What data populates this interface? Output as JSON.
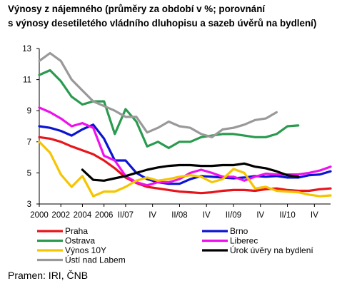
{
  "chart_data": {
    "type": "line",
    "title_lines": [
      "Výnosy z nájemného (průměry za období v %; porovnání",
      "s výnosy desetiletého vládního dluhopisu a sazeb úvěrů na bydlení)"
    ],
    "source": "Pramen: IRI, ČNB",
    "ylim": [
      3,
      13
    ],
    "yticks": [
      "3",
      "5",
      "7",
      "9",
      "11",
      "13"
    ],
    "x_periods": 28,
    "xticks": [
      {
        "index": 0,
        "label": "2000"
      },
      {
        "index": 2,
        "label": "2002"
      },
      {
        "index": 4,
        "label": "2004"
      },
      {
        "index": 6,
        "label": "2006"
      },
      {
        "index": 8,
        "label": "II/07"
      },
      {
        "index": 10.5,
        "label": "IV"
      },
      {
        "index": 13,
        "label": "II/08"
      },
      {
        "index": 15.5,
        "label": "IV"
      },
      {
        "index": 18,
        "label": "II/09"
      },
      {
        "index": 20.5,
        "label": "IV"
      },
      {
        "index": 23,
        "label": "II/10"
      },
      {
        "index": 25.5,
        "label": "IV"
      }
    ],
    "series": [
      {
        "name": "Praha",
        "color": "#e8141b",
        "values": [
          7.3,
          7.2,
          7.0,
          6.7,
          6.45,
          6.2,
          5.8,
          5.3,
          4.7,
          4.35,
          4.1,
          4.0,
          3.9,
          3.8,
          3.75,
          3.7,
          3.75,
          3.85,
          3.9,
          3.9,
          3.85,
          3.95,
          4.0,
          3.9,
          3.85,
          3.85,
          3.95,
          4.0
        ]
      },
      {
        "name": "Brno",
        "color": "#0b14d1",
        "values": [
          8.0,
          7.9,
          7.7,
          7.4,
          7.8,
          8.1,
          7.2,
          5.8,
          5.8,
          5.0,
          4.6,
          4.4,
          4.3,
          4.3,
          4.6,
          4.8,
          4.75,
          4.7,
          4.65,
          4.7,
          4.8,
          4.75,
          4.8,
          4.7,
          4.7,
          4.85,
          4.9,
          5.1
        ]
      },
      {
        "name": "Ostrava",
        "color": "#2a9a4e",
        "values": [
          11.3,
          11.6,
          10.9,
          9.9,
          9.4,
          9.6,
          9.6,
          7.5,
          9.1,
          8.3,
          6.7,
          7.0,
          6.6,
          7.0,
          7.0,
          7.3,
          7.4,
          7.5,
          7.5,
          7.4,
          7.3,
          7.3,
          7.5,
          8.0,
          8.05
        ]
      },
      {
        "name": "Liberec",
        "color": "#ee11ee",
        "values": [
          9.2,
          8.9,
          8.5,
          8.0,
          8.2,
          7.9,
          6.1,
          5.8,
          4.8,
          4.4,
          4.2,
          4.4,
          4.4,
          4.6,
          5.0,
          5.2,
          5.0,
          4.75,
          4.75,
          4.5,
          4.75,
          4.95,
          4.9,
          4.9,
          4.9,
          5.0,
          5.15,
          5.4
        ]
      },
      {
        "name": "Výnos 10Y",
        "color": "#f5c500",
        "values": [
          7.0,
          6.3,
          4.9,
          4.1,
          4.8,
          3.5,
          3.8,
          3.8,
          4.1,
          4.5,
          4.7,
          4.5,
          4.6,
          4.75,
          4.85,
          4.75,
          4.4,
          4.6,
          5.25,
          5.0,
          4.0,
          4.1,
          3.85,
          3.8,
          3.75,
          3.6,
          3.5,
          3.55
        ]
      },
      {
        "name": "Úrok úvěry na bydlení",
        "start": 4,
        "color": "#000000",
        "values": [
          5.2,
          4.55,
          4.5,
          4.65,
          4.8,
          5.0,
          5.2,
          5.35,
          5.45,
          5.5,
          5.5,
          5.45,
          5.45,
          5.5,
          5.5,
          5.6,
          5.4,
          5.3,
          5.1,
          4.85,
          4.75
        ]
      },
      {
        "name": "Ústí nad Labem",
        "color": "#999999",
        "values": [
          12.2,
          12.7,
          12.2,
          11.0,
          10.3,
          9.6,
          9.3,
          9.0,
          8.6,
          8.6,
          7.6,
          7.9,
          8.3,
          8.0,
          7.9,
          7.5,
          7.3,
          7.8,
          7.9,
          8.1,
          8.4,
          8.5,
          8.9
        ]
      }
    ]
  }
}
